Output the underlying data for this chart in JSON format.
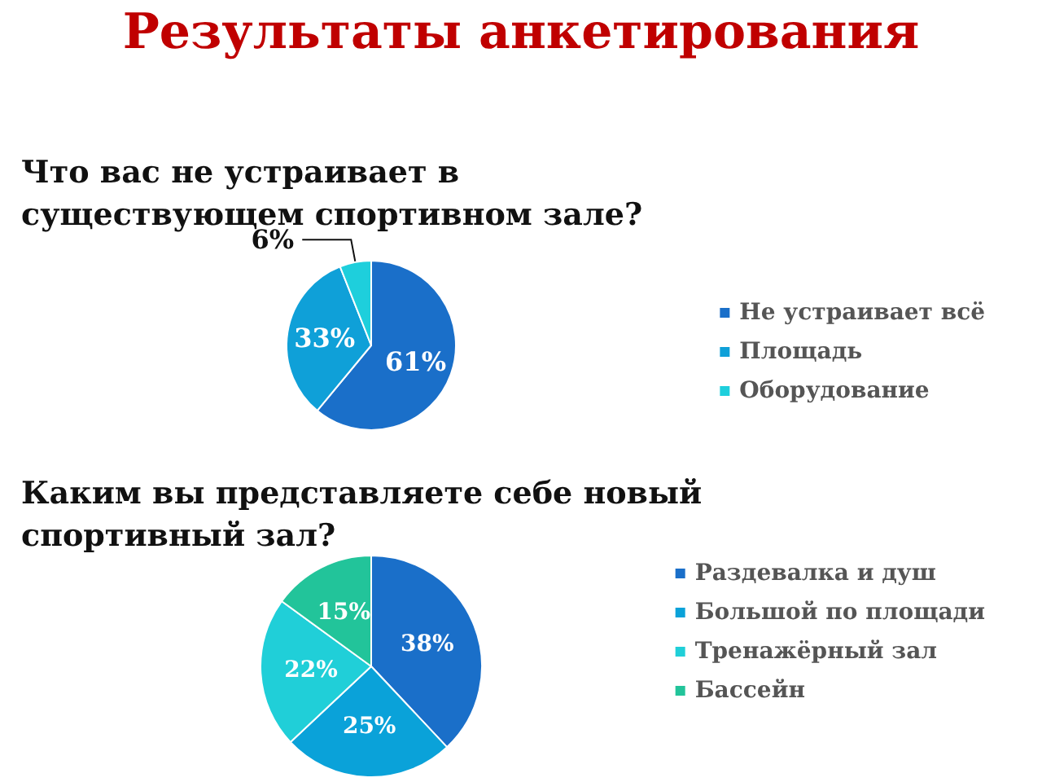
{
  "chart_data": [
    {
      "type": "pie",
      "title": "Результаты анкетирования",
      "subtitle": "Что вас не устраивает в существующем спортивном зале?",
      "categories": [
        "Не устраивает всё",
        "Площадь",
        "Оборудование"
      ],
      "values": [
        61,
        33,
        6
      ],
      "colors": [
        "#1a6fc9",
        "#0fa0d8",
        "#1ecfdc"
      ],
      "value_labels": [
        "61%",
        "33%",
        "6%"
      ],
      "legend": "right"
    },
    {
      "type": "pie",
      "title": "Каким вы представляете себе новый спортивный зал?",
      "categories": [
        "Раздевалка и душ",
        "Большой по площади",
        "Тренажёрный зал",
        "Бассейн"
      ],
      "values": [
        38,
        25,
        22,
        15
      ],
      "colors": [
        "#1a6fc9",
        "#0aa2d9",
        "#20cfd8",
        "#22c49a"
      ],
      "value_labels": [
        "38%",
        "25%",
        "22%",
        "15%"
      ],
      "legend": "right"
    }
  ]
}
